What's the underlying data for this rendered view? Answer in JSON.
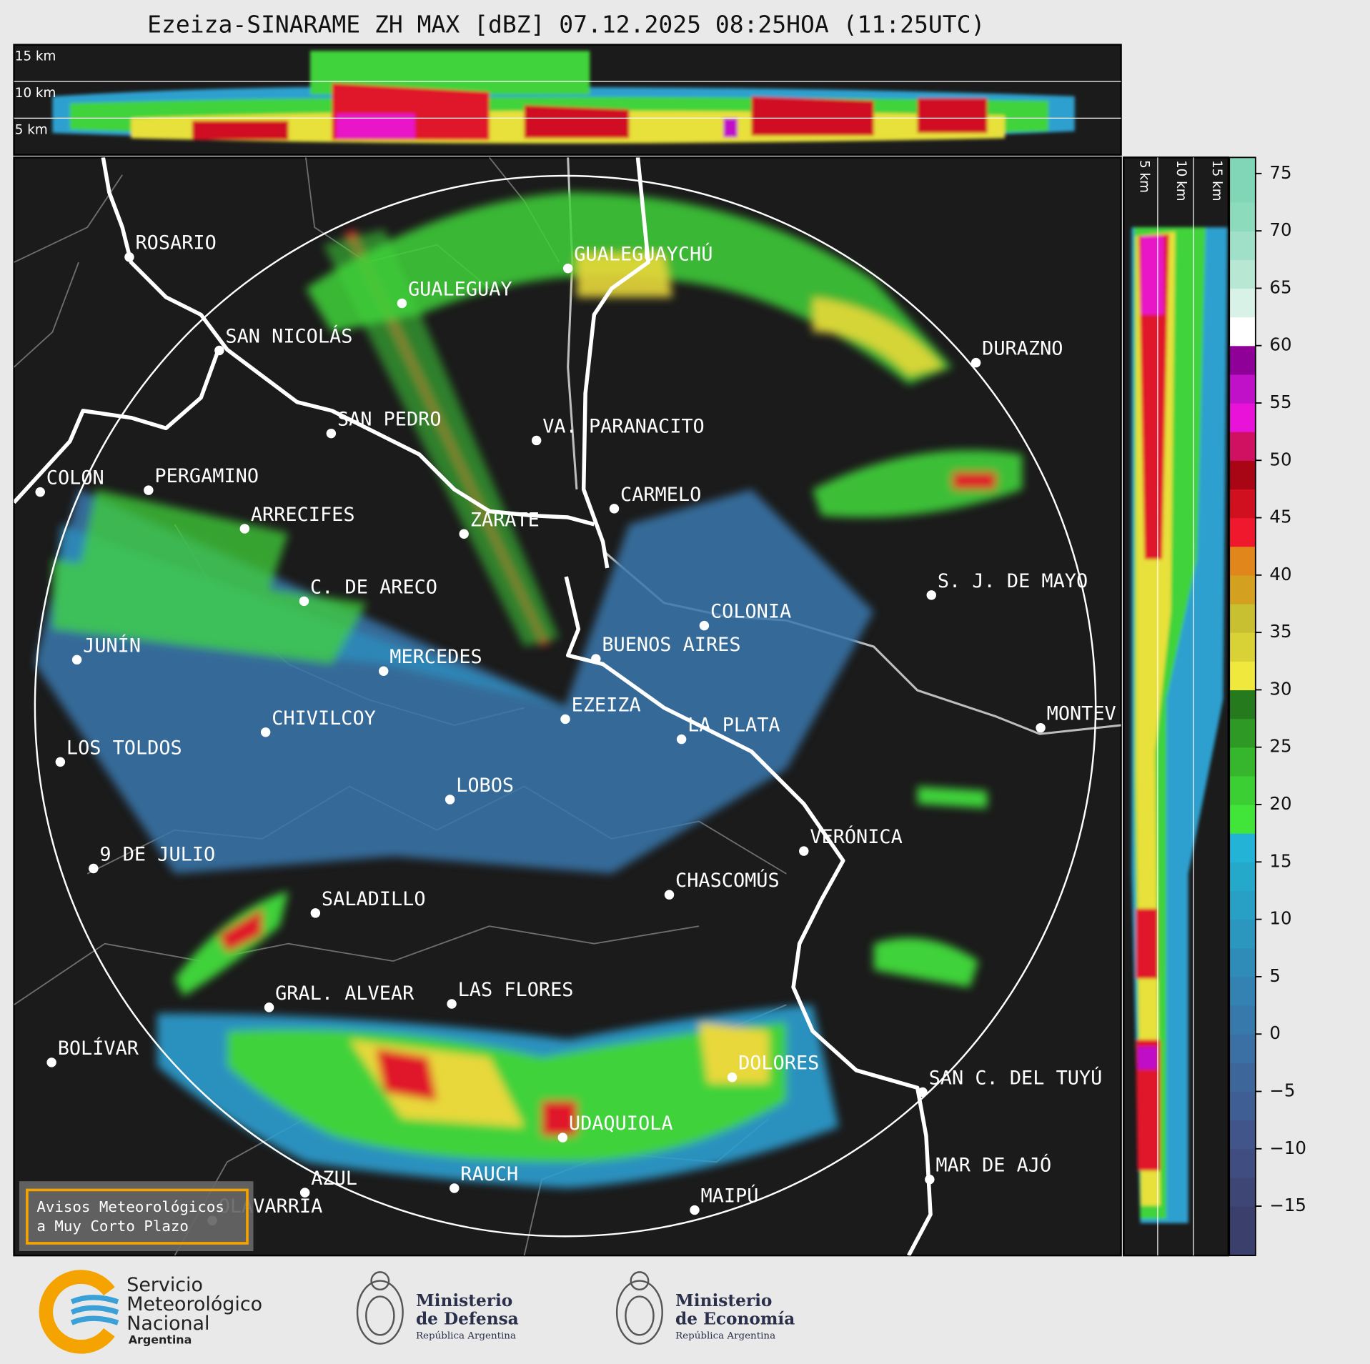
{
  "title": "Ezeiza-SINARAME ZH MAX [dBZ] 07.12.2025 08:25HOA (11:25UTC)",
  "top_panel": {
    "height_labels": [
      "15 km",
      "10 km",
      "5 km"
    ]
  },
  "side_panel": {
    "height_labels": [
      "5 km",
      "10 km",
      "15 km"
    ]
  },
  "cities": [
    "ROSARIO",
    "GUALEGUAYCHÚ",
    "GUALEGUAY",
    "SAN NICOLÁS",
    "DURAZNO",
    "SAN PEDRO",
    "VA. PARANACITO",
    "COLON",
    "PERGAMINO",
    "CARMELO",
    "ARRECIFES",
    "ZÁRATE",
    "S. J. DE MAYO",
    "C. DE ARECO",
    "COLONIA",
    "BUENOS AIRES",
    "JUNÍN",
    "MERCEDES",
    "EZEIZA",
    "MONTEV",
    "CHIVILCOY",
    "LA PLATA",
    "LOS TOLDOS",
    "LOBOS",
    "VERÓNICA",
    "9 DE JULIO",
    "CHASCOMÚS",
    "SALADILLO",
    "GRAL. ALVEAR",
    "LAS FLORES",
    "BOLÍVAR",
    "DOLORES",
    "SAN C. DEL TUYÚ",
    "UDAQUIOLA",
    "MAR DE AJÓ",
    "AZUL",
    "RAUCH",
    "MAIPÚ",
    "OLAVARRÍA"
  ],
  "colorbar": {
    "lim": [
      -19.3,
      76.4
    ],
    "ticks": [
      {
        "value": -15,
        "label": "−15"
      },
      {
        "value": -10,
        "label": "−10"
      },
      {
        "value": -5,
        "label": "−5"
      },
      0,
      5,
      10,
      15,
      20,
      25,
      30,
      35,
      40,
      45,
      50,
      55,
      60,
      65,
      70,
      75
    ],
    "bins": [
      -19.3,
      -15,
      -12.5,
      -10,
      -7.5,
      -5,
      -2.5,
      0,
      2.5,
      5,
      7.5,
      10,
      12.5,
      15,
      17.5,
      20,
      22.5,
      25,
      27.5,
      30,
      32.5,
      35,
      37.5,
      40,
      42.5,
      45,
      47.5,
      50,
      52.5,
      55,
      57.5,
      60,
      62.5,
      65,
      67.5,
      70,
      72.5,
      76.4
    ],
    "colors": [
      "#3b3f6b",
      "#3e4676",
      "#404d80",
      "#41558a",
      "#3f5e93",
      "#3d679b",
      "#3a70a3",
      "#3679aa",
      "#3382b1",
      "#2f8cb8",
      "#2b96be",
      "#289fc4",
      "#25a9ca",
      "#22b3d6",
      "#41e53a",
      "#3ccf33",
      "#35b62c",
      "#2e9a25",
      "#257a1e",
      "#f0e83c",
      "#d8d236",
      "#c8c030",
      "#d4a020",
      "#e0861a",
      "#f0182c",
      "#d0101e",
      "#a80614",
      "#d01060",
      "#e812d8",
      "#c010c8",
      "#8e0098",
      "#ffffff",
      "#d8f2e8",
      "#b8e8d4",
      "#a0e0c8",
      "#8cdbbd",
      "#80d6b6"
    ]
  },
  "notice": [
    "Avisos Meteorológicos",
    "a Muy Corto Plazo"
  ],
  "logos": {
    "smn": [
      "Servicio",
      "Meteorológico",
      "Nacional",
      "Argentina"
    ],
    "defensa": [
      "Ministerio",
      "de Defensa",
      "República Argentina"
    ],
    "economia": [
      "Ministerio",
      "de Economía",
      "República Argentina"
    ]
  }
}
